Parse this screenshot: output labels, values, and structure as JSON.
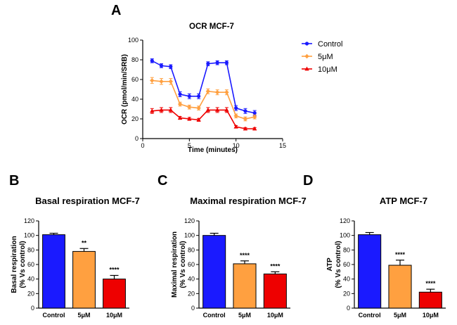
{
  "panel_labels": {
    "a": "A",
    "b": "B",
    "c": "C",
    "d": "D"
  },
  "chart_data": [
    {
      "id": "A",
      "type": "line",
      "title": "OCR MCF-7",
      "xlabel": "Time (minutes)",
      "ylabel": "OCR (pmol/min/SRB)",
      "xlim": [
        0,
        15
      ],
      "ylim": [
        0,
        100
      ],
      "xticks": [
        "0",
        "5",
        "10",
        "15"
      ],
      "yticks": [
        "0",
        "20",
        "40",
        "60",
        "80",
        "100"
      ],
      "legend_position": "right",
      "x": [
        1,
        2,
        3,
        4,
        5,
        6,
        7,
        8,
        9,
        10,
        11,
        12
      ],
      "series": [
        {
          "name": "Control",
          "color": "#1a1aff",
          "marker": "circle",
          "values": [
            79,
            74,
            73,
            45,
            43,
            43,
            76,
            77,
            77,
            31,
            28,
            26
          ],
          "errors": [
            2,
            2,
            2,
            2.5,
            2.5,
            2.5,
            2,
            2,
            2,
            2.5,
            2.5,
            2.5
          ]
        },
        {
          "name": "5μM",
          "color": "#ffa040",
          "marker": "diamond",
          "values": [
            59,
            58,
            58,
            35,
            32,
            31,
            48,
            47,
            47,
            23,
            20,
            22
          ],
          "errors": [
            3,
            3,
            3,
            2,
            2,
            2,
            2.5,
            2.5,
            2.5,
            2,
            2,
            2
          ]
        },
        {
          "name": "10μM",
          "color": "#ee0000",
          "marker": "triangle",
          "values": [
            28,
            29,
            29,
            21,
            20,
            19,
            29,
            29,
            29,
            12,
            10,
            10
          ],
          "errors": [
            2.5,
            2.5,
            2.5,
            1.5,
            1.5,
            1.5,
            2.5,
            2.5,
            2.5,
            1.2,
            1.2,
            1.2
          ]
        }
      ]
    },
    {
      "id": "B",
      "type": "bar",
      "title": "Basal respiration MCF-7",
      "ylabel": [
        "Basal respiration",
        "(% Vs control)"
      ],
      "ylim": [
        0,
        120
      ],
      "yticks": [
        "0",
        "20",
        "40",
        "60",
        "80",
        "100",
        "120"
      ],
      "categories": [
        "Control",
        "5μM",
        "10μM"
      ],
      "values": [
        101,
        78,
        40
      ],
      "errors": [
        2,
        4,
        5
      ],
      "colors": [
        "#1a1aff",
        "#ffa040",
        "#ee0000"
      ],
      "annotations": [
        "",
        "**",
        "****"
      ]
    },
    {
      "id": "C",
      "type": "bar",
      "title": "Maximal respiration MCF-7",
      "ylabel": [
        "Maximal respiration",
        "(% Vs control)"
      ],
      "ylim": [
        0,
        120
      ],
      "yticks": [
        "0",
        "20",
        "40",
        "60",
        "80",
        "100",
        "120"
      ],
      "categories": [
        "Control",
        "5μM",
        "10μM"
      ],
      "values": [
        100,
        61,
        47
      ],
      "errors": [
        3,
        4,
        3
      ],
      "colors": [
        "#1a1aff",
        "#ffa040",
        "#ee0000"
      ],
      "annotations": [
        "",
        "****",
        "****"
      ]
    },
    {
      "id": "D",
      "type": "bar",
      "title": "ATP MCF-7",
      "ylabel": [
        "ATP",
        "(% Vs control)"
      ],
      "ylim": [
        0,
        120
      ],
      "yticks": [
        "0",
        "20",
        "40",
        "60",
        "80",
        "100",
        "120"
      ],
      "categories": [
        "Control",
        "5μM",
        "10μM"
      ],
      "values": [
        101,
        59,
        22
      ],
      "errors": [
        3,
        7,
        4
      ],
      "colors": [
        "#1a1aff",
        "#ffa040",
        "#ee0000"
      ],
      "annotations": [
        "",
        "****",
        "****"
      ]
    }
  ]
}
